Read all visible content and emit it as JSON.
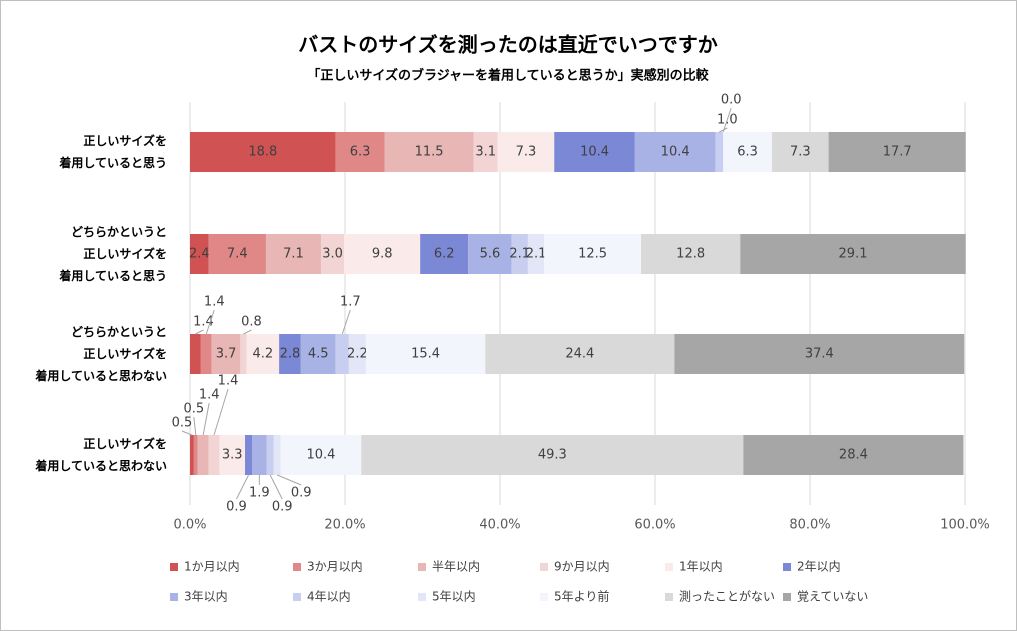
{
  "chart_data": {
    "type": "stacked-bar-horizontal",
    "title": "バストのサイズを測ったのは直近でいつですか",
    "subtitle": "「正しいサイズのブラジャーを着用していると思うか」実感別の比較",
    "categories": [
      "正しいサイズを\n着用していると思う",
      "どちらかというと\n正しいサイズを\n着用していると思う",
      "どちらかというと\n正しいサイズを\n着用していると思わない",
      "正しいサイズを\n着用していると思わない"
    ],
    "series": [
      {
        "name": "1か月以内",
        "color": "#d05252",
        "values": [
          18.8,
          2.4,
          1.4,
          0.5
        ],
        "value_labels": [
          "18.8",
          "2.4",
          "1.4",
          "0.5"
        ]
      },
      {
        "name": "3か月以内",
        "color": "#e08787",
        "values": [
          6.3,
          7.4,
          1.4,
          0.5
        ],
        "value_labels": [
          "6.3",
          "7.4",
          "1.4",
          "0.5"
        ]
      },
      {
        "name": "半年以内",
        "color": "#e9b6b6",
        "values": [
          11.5,
          7.1,
          3.7,
          1.4
        ],
        "value_labels": [
          "11.5",
          "7.1",
          "3.7",
          "1.4"
        ]
      },
      {
        "name": "9か月以内",
        "color": "#f3d4d4",
        "values": [
          3.1,
          3.0,
          0.8,
          1.4
        ],
        "value_labels": [
          "3.1",
          "3.0",
          "0.8",
          "1.4"
        ]
      },
      {
        "name": "1年以内",
        "color": "#fbeaea",
        "values": [
          7.3,
          9.8,
          4.2,
          3.3
        ],
        "value_labels": [
          "7.3",
          "9.8",
          "4.2",
          "3.3"
        ]
      },
      {
        "name": "2年以内",
        "color": "#7b88d6",
        "values": [
          10.4,
          6.2,
          2.8,
          0.9
        ],
        "value_labels": [
          "10.4",
          "6.2",
          "2.8",
          "0.9"
        ]
      },
      {
        "name": "3年以内",
        "color": "#a9b2e4",
        "values": [
          10.4,
          5.6,
          4.5,
          1.9
        ],
        "value_labels": [
          "10.4",
          "5.6",
          "4.5",
          "1.9"
        ]
      },
      {
        "name": "4年以内",
        "color": "#c8cef0",
        "values": [
          1.0,
          2.1,
          1.7,
          0.9
        ],
        "value_labels": [
          "1.0",
          "2.1",
          "1.7",
          "0.9"
        ]
      },
      {
        "name": "5年以内",
        "color": "#e2e6f7",
        "values": [
          0.0,
          2.1,
          2.2,
          0.9
        ],
        "value_labels": [
          "0.0",
          "2.1",
          "2.2",
          "0.9"
        ]
      },
      {
        "name": "5年より前",
        "color": "#f3f5fc",
        "values": [
          6.3,
          12.5,
          15.4,
          10.4
        ],
        "value_labels": [
          "6.3",
          "12.5",
          "15.4",
          "10.4"
        ]
      },
      {
        "name": "測ったことがない",
        "color": "#d9d9d9",
        "values": [
          7.3,
          12.8,
          24.4,
          49.3
        ],
        "value_labels": [
          "7.3",
          "12.8",
          "24.4",
          "49.3"
        ]
      },
      {
        "name": "覚えていない",
        "color": "#a6a6a6",
        "values": [
          17.7,
          29.1,
          37.4,
          28.4
        ],
        "value_labels": [
          "17.7",
          "29.1",
          "37.4",
          "28.4"
        ]
      }
    ],
    "xlim": [
      0,
      100
    ],
    "xticks": [
      {
        "value": 0,
        "label": "0.0%"
      },
      {
        "value": 20,
        "label": "20.0%"
      },
      {
        "value": 40,
        "label": "40.0%"
      },
      {
        "value": 60,
        "label": "60.0%"
      },
      {
        "value": 80,
        "label": "80.0%"
      },
      {
        "value": 100,
        "label": "100.0%"
      }
    ],
    "grid": true,
    "legend": "bottom"
  }
}
